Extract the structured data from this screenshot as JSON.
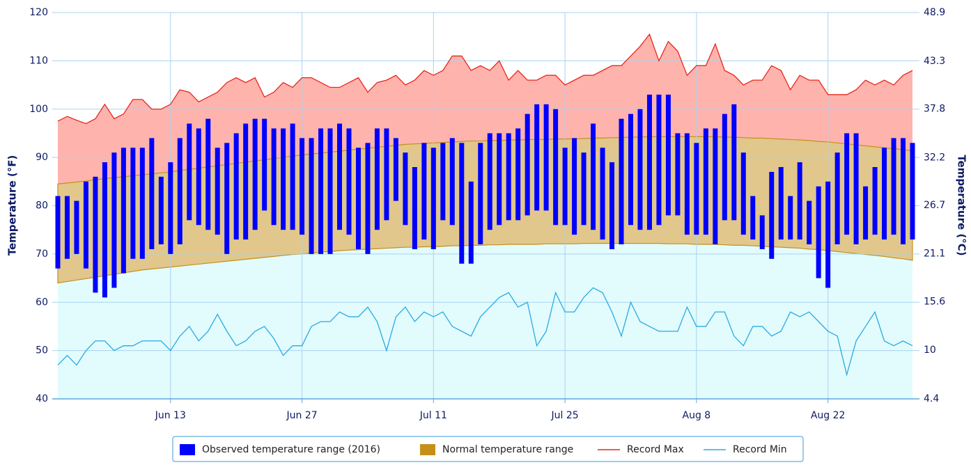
{
  "chart_data": {
    "type": "temperature-range",
    "y_label": "Temperature (°F)",
    "y2_label": "Temperature (°C)",
    "ylim": [
      40,
      120
    ],
    "yticks": [
      40,
      50,
      60,
      70,
      80,
      90,
      100,
      110,
      120
    ],
    "y2lim": [
      4.4,
      48.9
    ],
    "y2ticks": [
      4.4,
      10,
      15.6,
      21.1,
      26.7,
      32.2,
      37.8,
      43.3,
      48.9
    ],
    "grid": true,
    "legend": "bottom",
    "categories": [
      null,
      null,
      null,
      null,
      null,
      null,
      null,
      null,
      null,
      null,
      null,
      null,
      "Jun 13",
      null,
      null,
      null,
      null,
      null,
      null,
      null,
      null,
      null,
      null,
      null,
      null,
      null,
      "Jun 27",
      null,
      null,
      null,
      null,
      null,
      null,
      null,
      null,
      null,
      null,
      null,
      null,
      null,
      "Jul 11",
      null,
      null,
      null,
      null,
      null,
      null,
      null,
      null,
      null,
      null,
      null,
      null,
      null,
      "Jul 25",
      null,
      null,
      null,
      null,
      null,
      null,
      null,
      null,
      null,
      null,
      null,
      null,
      null,
      "Aug 8",
      null,
      null,
      null,
      null,
      null,
      null,
      null,
      null,
      null,
      null,
      null,
      null,
      null,
      "Aug 22",
      null,
      null,
      null,
      null,
      null,
      null,
      null,
      null,
      null
    ],
    "series": [
      {
        "name": "Observed temperature range (2016)",
        "kind": "bars",
        "color": "#0000ff",
        "low": [
          67,
          69,
          70,
          67,
          62,
          61,
          63,
          66,
          69,
          69,
          71,
          72,
          70,
          72,
          77,
          76,
          75,
          74,
          70,
          73,
          73,
          75,
          79,
          76,
          75,
          75,
          74,
          70,
          70,
          70,
          75,
          74,
          71,
          70,
          75,
          77,
          81,
          76,
          71,
          73,
          71,
          77,
          76,
          68,
          68,
          72,
          75,
          76,
          77,
          77,
          78,
          79,
          79,
          76,
          76,
          74,
          76,
          75,
          73,
          71,
          72,
          76,
          75,
          75,
          76,
          78,
          78,
          74,
          74,
          74,
          72,
          77,
          77,
          74,
          73,
          71,
          69,
          73,
          73,
          73,
          72,
          65,
          63,
          72,
          74,
          72,
          73,
          74,
          73,
          74,
          72,
          73
        ],
        "high": [
          82,
          82,
          81,
          85,
          86,
          89,
          91,
          92,
          92,
          92,
          94,
          86,
          89,
          94,
          97,
          96,
          98,
          92,
          93,
          95,
          97,
          98,
          98,
          96,
          96,
          97,
          94,
          94,
          96,
          96,
          97,
          96,
          92,
          93,
          96,
          96,
          94,
          91,
          88,
          93,
          92,
          93,
          94,
          93,
          85,
          93,
          95,
          95,
          95,
          96,
          99,
          101,
          101,
          100,
          92,
          94,
          91,
          97,
          92,
          89,
          98,
          99,
          100,
          103,
          103,
          103,
          95,
          95,
          93,
          96,
          96,
          99,
          101,
          91,
          82,
          78,
          87,
          88,
          82,
          89,
          81,
          84,
          85,
          91,
          95,
          95,
          84,
          88,
          92,
          94,
          94,
          93
        ]
      },
      {
        "name": "Normal temperature range",
        "kind": "band",
        "color": "#c4901a",
        "low": [
          64.0,
          64.3,
          64.6,
          64.9,
          65.2,
          65.5,
          65.8,
          66.1,
          66.4,
          66.7,
          66.9,
          67.1,
          67.3,
          67.5,
          67.7,
          67.9,
          68.1,
          68.3,
          68.5,
          68.7,
          68.9,
          69.1,
          69.3,
          69.5,
          69.7,
          69.9,
          70.0,
          70.2,
          70.4,
          70.5,
          70.7,
          70.8,
          70.9,
          71.0,
          71.1,
          71.2,
          71.3,
          71.4,
          71.4,
          71.5,
          71.5,
          71.6,
          71.7,
          71.7,
          71.8,
          71.8,
          71.9,
          71.9,
          72.0,
          72.0,
          72.0,
          72.0,
          72.1,
          72.1,
          72.1,
          72.1,
          72.2,
          72.2,
          72.2,
          72.2,
          72.2,
          72.2,
          72.2,
          72.2,
          72.2,
          72.1,
          72.1,
          72.1,
          72.0,
          72.0,
          72.0,
          71.9,
          71.8,
          71.8,
          71.7,
          71.6,
          71.5,
          71.4,
          71.3,
          71.2,
          71.0,
          70.9,
          70.7,
          70.5,
          70.3,
          70.1,
          69.9,
          69.7,
          69.5,
          69.2,
          69.0,
          68.7
        ],
        "high": [
          84.5,
          84.7,
          84.9,
          85.1,
          85.4,
          85.6,
          85.8,
          86.0,
          86.2,
          86.4,
          86.6,
          86.8,
          87.0,
          87.3,
          87.5,
          87.8,
          88.0,
          88.3,
          88.5,
          88.8,
          89.0,
          89.3,
          89.5,
          89.8,
          90.0,
          90.3,
          90.5,
          90.7,
          90.9,
          91.1,
          91.3,
          91.5,
          91.7,
          91.9,
          92.1,
          92.3,
          92.5,
          92.7,
          92.8,
          92.9,
          93.0,
          93.1,
          93.2,
          93.3,
          93.4,
          93.4,
          93.5,
          93.5,
          93.6,
          93.6,
          93.7,
          93.7,
          93.7,
          93.8,
          93.8,
          93.9,
          93.9,
          94.0,
          94.0,
          94.1,
          94.1,
          94.2,
          94.2,
          94.3,
          94.3,
          94.3,
          94.3,
          94.3,
          94.3,
          94.3,
          94.3,
          94.2,
          94.2,
          94.1,
          94.0,
          94.0,
          93.9,
          93.8,
          93.7,
          93.6,
          93.5,
          93.3,
          93.2,
          93.0,
          92.8,
          92.6,
          92.4,
          92.2,
          92.0,
          91.8,
          91.6,
          91.4
        ]
      },
      {
        "name": "Record Max",
        "kind": "line",
        "color": "#e8261d",
        "fill": "#ffb3ad",
        "values": [
          97.5,
          98.5,
          97.7,
          97,
          98,
          101,
          98,
          99,
          102,
          102,
          100,
          100,
          101,
          104,
          103.5,
          101.5,
          102.5,
          103.5,
          105.5,
          106.5,
          105.5,
          106.5,
          102.5,
          103.5,
          105.5,
          104.5,
          106.5,
          106.5,
          105.5,
          104.5,
          104.5,
          105.5,
          106.5,
          103.5,
          105.5,
          106,
          107,
          105,
          106,
          108,
          107,
          108,
          111,
          111,
          108,
          109,
          108,
          110,
          106,
          108,
          106,
          106,
          107,
          107,
          105,
          106,
          107,
          107,
          108,
          109,
          109,
          111,
          113,
          115.5,
          110,
          114,
          112,
          107,
          109,
          109,
          113.5,
          108,
          107,
          105,
          106,
          106,
          109,
          108,
          104,
          107,
          106,
          106,
          103,
          103,
          103,
          104,
          106,
          105,
          106,
          105,
          107,
          108
        ]
      },
      {
        "name": "Record Min",
        "kind": "line",
        "color": "#2aaae2",
        "fill": "#e2fbfd",
        "values": [
          47,
          49,
          47,
          50,
          52,
          52,
          50,
          51,
          51,
          52,
          52,
          52,
          50,
          53,
          55,
          52,
          54,
          57.5,
          54,
          51,
          52,
          54,
          55,
          52.5,
          49,
          51,
          51,
          55,
          56,
          56,
          58,
          57,
          57,
          59,
          56,
          50,
          57,
          59,
          56,
          58,
          57,
          58,
          55,
          54,
          53,
          57,
          59,
          61,
          62,
          59,
          60,
          51,
          54,
          62,
          58,
          58,
          61,
          63,
          62,
          58,
          53,
          60,
          56,
          55,
          54,
          54,
          54,
          59,
          55,
          55,
          58,
          58,
          53,
          51,
          55,
          55,
          53,
          54,
          58,
          57,
          58,
          56,
          54,
          53,
          45,
          52,
          55,
          58,
          52,
          51,
          52,
          51
        ]
      }
    ]
  }
}
